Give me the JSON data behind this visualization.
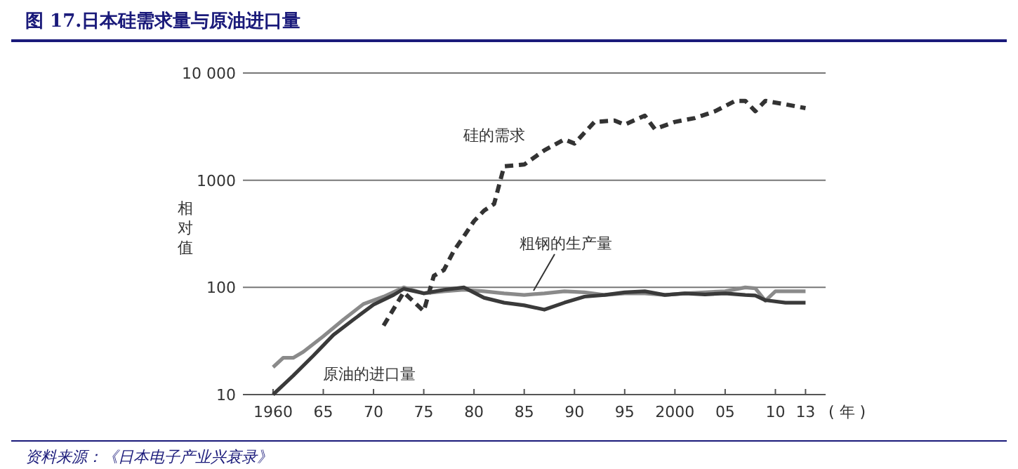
{
  "chart_data": {
    "type": "line",
    "title": "图 17.日本硅需求量与原油进口量",
    "ylabel": "相对值",
    "xlabel": "( 年 )",
    "log": true,
    "grid": "y",
    "xlim": [
      1957,
      2015
    ],
    "xticks": [
      {
        "value": 1960,
        "label": "1960"
      },
      {
        "value": 1965,
        "label": "65"
      },
      {
        "value": 1970,
        "label": "70"
      },
      {
        "value": 1975,
        "label": "75"
      },
      {
        "value": 1980,
        "label": "80"
      },
      {
        "value": 1985,
        "label": "85"
      },
      {
        "value": 1990,
        "label": "90"
      },
      {
        "value": 1995,
        "label": "95"
      },
      {
        "value": 2000,
        "label": "2000"
      },
      {
        "value": 2005,
        "label": "05"
      },
      {
        "value": 2010,
        "label": "10"
      },
      {
        "value": 2013,
        "label": "13"
      }
    ],
    "ylim": [
      10,
      10000
    ],
    "yticks": [
      10,
      100,
      1000,
      {
        "value": 10000,
        "label": "10 000"
      }
    ],
    "series": [
      {
        "name": "硅的需求",
        "color": "#333333",
        "line_style": "dashed",
        "x": [
          1971,
          1973,
          1975,
          1976,
          1977,
          1978,
          1979,
          1980,
          1981,
          1982,
          1983,
          1985,
          1987,
          1989,
          1990,
          1992,
          1994,
          1995,
          1997,
          1998,
          2000,
          2002,
          2004,
          2006,
          2007,
          2008,
          2009,
          2011,
          2013
        ],
        "values": [
          44,
          90,
          60,
          128,
          145,
          220,
          300,
          415,
          520,
          600,
          1350,
          1400,
          1900,
          2400,
          2200,
          3500,
          3600,
          3300,
          4000,
          3000,
          3500,
          3800,
          4400,
          5500,
          5500,
          4400,
          5500,
          5100,
          4700
        ]
      },
      {
        "name": "粗钢的生产量",
        "color": "#8a8a8a",
        "line_style": "solid",
        "x": [
          1960,
          1961,
          1962,
          1963,
          1965,
          1967,
          1969,
          1971,
          1973,
          1975,
          1977,
          1979,
          1981,
          1983,
          1985,
          1987,
          1989,
          1991,
          1993,
          1995,
          1997,
          1999,
          2001,
          2003,
          2005,
          2007,
          2008,
          2009,
          2010,
          2013
        ],
        "values": [
          18,
          22,
          22,
          25,
          35,
          50,
          70,
          82,
          100,
          88,
          92,
          95,
          92,
          88,
          85,
          88,
          92,
          90,
          85,
          88,
          88,
          85,
          88,
          90,
          92,
          100,
          98,
          75,
          92,
          92
        ]
      },
      {
        "name": "原油的进口量",
        "color": "#3a3a3a",
        "line_style": "solid",
        "x": [
          1960,
          1962,
          1964,
          1966,
          1968,
          1970,
          1972,
          1973,
          1975,
          1977,
          1979,
          1981,
          1983,
          1985,
          1987,
          1989,
          1991,
          1993,
          1995,
          1997,
          1999,
          2001,
          2003,
          2005,
          2007,
          2008,
          2009,
          2011,
          2013
        ],
        "values": [
          10,
          15,
          23,
          36,
          50,
          69,
          85,
          97,
          88,
          95,
          100,
          80,
          72,
          68,
          62,
          72,
          82,
          85,
          90,
          92,
          85,
          88,
          86,
          88,
          85,
          84,
          76,
          72,
          72
        ]
      }
    ],
    "annotations": [
      "资料来源：《日本电子产业兴衰录》"
    ]
  }
}
